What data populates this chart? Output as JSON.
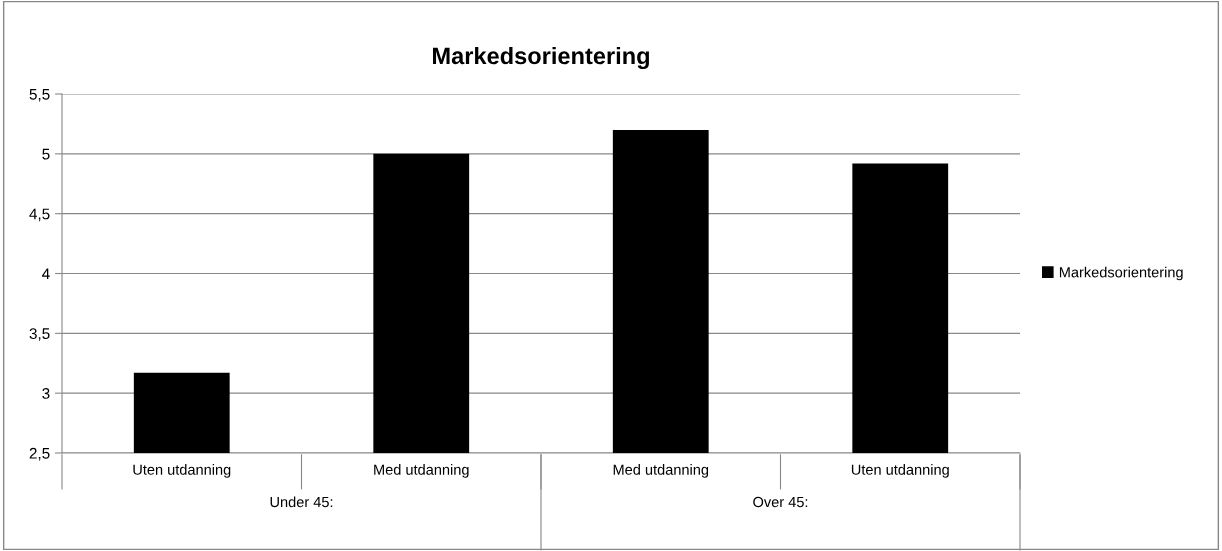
{
  "chart_data": {
    "type": "bar",
    "title": "Markedsorientering",
    "categories": [
      "Uten utdanning",
      "Med utdanning",
      "Med utdanning",
      "Uten utdanning"
    ],
    "series": [
      {
        "name": "Markedsorientering",
        "color": "#000000",
        "values": [
          3.17,
          5.0,
          5.2,
          4.92
        ]
      }
    ],
    "ylim": [
      2.5,
      5.5
    ],
    "yticks": [
      {
        "value": 2.5,
        "label": "2,5"
      },
      3,
      {
        "value": 3.5,
        "label": "3,5"
      },
      4,
      {
        "value": 4.5,
        "label": "4,5"
      },
      5,
      {
        "value": 5.5,
        "label": "5,5"
      }
    ],
    "grid": "y",
    "legend": "right",
    "annotations": [
      "Under 45:",
      "Over 45:"
    ]
  }
}
